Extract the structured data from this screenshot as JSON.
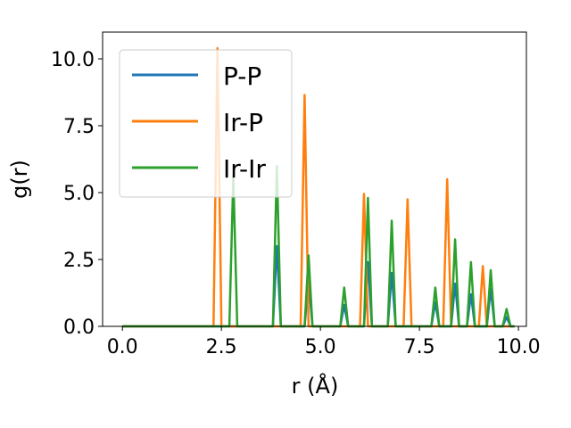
{
  "chart_data": {
    "type": "line",
    "title": "",
    "xlabel": "r (Å)",
    "ylabel": "g(r)",
    "xlim": [
      -0.5,
      10.2
    ],
    "ylim": [
      0,
      11
    ],
    "xticks": [
      0.0,
      2.5,
      5.0,
      7.5,
      10.0
    ],
    "xtick_labels": [
      "0.0",
      "2.5",
      "5.0",
      "7.5",
      "10.0"
    ],
    "yticks": [
      0.0,
      2.5,
      5.0,
      7.5,
      10.0
    ],
    "ytick_labels": [
      "0.0",
      "2.5",
      "5.0",
      "7.5",
      "10.0"
    ],
    "grid": false,
    "legend": {
      "position": "top-left"
    },
    "series": [
      {
        "name": "P-P",
        "color": "#1f77b4",
        "peaks": [
          [
            3.9,
            3.0
          ],
          [
            4.7,
            1.7
          ],
          [
            5.6,
            0.8
          ],
          [
            6.2,
            2.4
          ],
          [
            6.8,
            2.0
          ],
          [
            7.9,
            0.9
          ],
          [
            8.4,
            1.6
          ],
          [
            8.8,
            1.2
          ],
          [
            9.3,
            1.4
          ],
          [
            9.7,
            0.35
          ]
        ]
      },
      {
        "name": "Ir-P",
        "color": "#ff7f0e",
        "peaks": [
          [
            2.4,
            10.4
          ],
          [
            4.6,
            8.65
          ],
          [
            6.1,
            4.95
          ],
          [
            7.2,
            4.75
          ],
          [
            8.2,
            5.5
          ],
          [
            9.1,
            2.25
          ]
        ]
      },
      {
        "name": "Ir-Ir",
        "color": "#2ca02c",
        "peaks": [
          [
            2.8,
            5.6
          ],
          [
            3.9,
            6.0
          ],
          [
            4.7,
            2.65
          ],
          [
            5.6,
            1.45
          ],
          [
            6.2,
            4.8
          ],
          [
            6.8,
            3.95
          ],
          [
            7.9,
            1.45
          ],
          [
            8.4,
            3.25
          ],
          [
            8.8,
            2.4
          ],
          [
            9.3,
            2.1
          ],
          [
            9.7,
            0.65
          ]
        ]
      }
    ]
  }
}
